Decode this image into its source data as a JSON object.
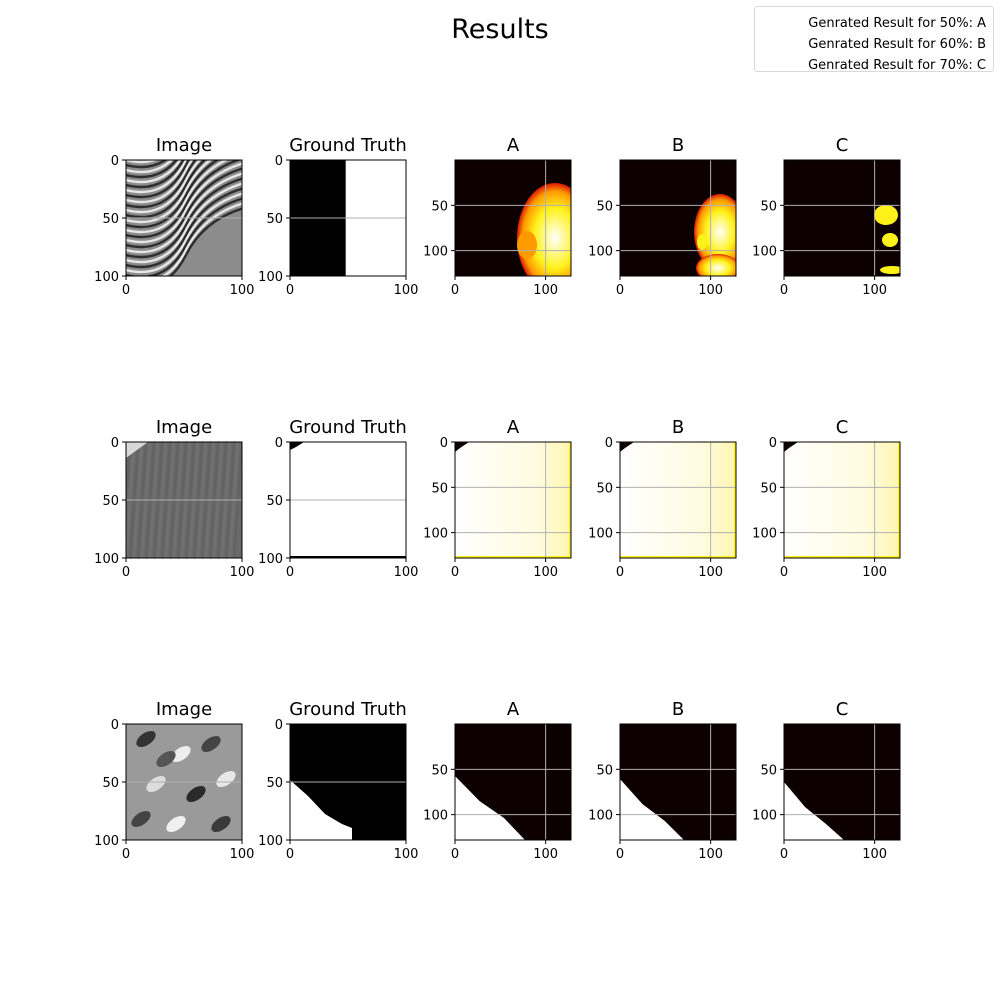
{
  "figure_title": "Results",
  "legend": [
    "Genrated Result for 50%: A",
    "Genrated Result for 60%: B",
    "Genrated Result for 70%: C"
  ],
  "colors": {
    "gray_axis_bg": "#7a7a7a",
    "heat_dark": "#0d0000",
    "heat_red": "#d81800",
    "heat_orange": "#ff9a00",
    "heat_yellow": "#fff21a",
    "heat_white": "#ffffff",
    "gridline": "#b0b0b0"
  },
  "chart_data": [
    {
      "type": "heatmap",
      "row": 1,
      "col": 1,
      "title": "Image",
      "xticks": [
        0,
        100
      ],
      "yticks": [
        0,
        50,
        100
      ],
      "xlim": [
        0,
        100
      ],
      "ylim": [
        100,
        0
      ],
      "content": "grayscale-seismic-diagonal"
    },
    {
      "type": "heatmap",
      "row": 1,
      "col": 2,
      "title": "Ground Truth",
      "xticks": [
        0,
        100
      ],
      "yticks": [
        0,
        50,
        100
      ],
      "xlim": [
        0,
        100
      ],
      "ylim": [
        100,
        0
      ],
      "mask": {
        "white_region": "right half",
        "boundary_x": 48
      }
    },
    {
      "type": "heatmap",
      "row": 1,
      "col": 3,
      "title": "A",
      "xticks": [
        0,
        100
      ],
      "yticks": [
        50,
        100
      ],
      "xlim": [
        0,
        128
      ],
      "ylim": [
        128,
        0
      ],
      "content": "right-side blob x 65-128, y 40-128"
    },
    {
      "type": "heatmap",
      "row": 1,
      "col": 4,
      "title": "B",
      "xticks": [
        0,
        100
      ],
      "yticks": [
        50,
        100
      ],
      "xlim": [
        0,
        128
      ],
      "ylim": [
        128,
        0
      ],
      "content": "right-side blob x 75-128, y 40-128"
    },
    {
      "type": "heatmap",
      "row": 1,
      "col": 5,
      "title": "C",
      "xticks": [
        0,
        100
      ],
      "yticks": [
        50,
        100
      ],
      "xlim": [
        0,
        128
      ],
      "ylim": [
        128,
        0
      ],
      "content": "small blobs x 85-128, y 45-125"
    },
    {
      "type": "heatmap",
      "row": 2,
      "col": 1,
      "title": "Image",
      "xticks": [
        0,
        100
      ],
      "yticks": [
        0,
        50,
        100
      ],
      "xlim": [
        0,
        100
      ],
      "ylim": [
        100,
        0
      ],
      "content": "grayscale-smooth"
    },
    {
      "type": "heatmap",
      "row": 2,
      "col": 2,
      "title": "Ground Truth",
      "xticks": [
        0,
        100
      ],
      "yticks": [
        0,
        50,
        100
      ],
      "xlim": [
        0,
        100
      ],
      "ylim": [
        100,
        0
      ],
      "mask": {
        "white_region": "nearly all",
        "black_corner": "top-left"
      }
    },
    {
      "type": "heatmap",
      "row": 2,
      "col": 3,
      "title": "A",
      "xticks": [
        0,
        100
      ],
      "yticks": [
        0,
        50,
        100
      ],
      "xlim": [
        0,
        128
      ],
      "ylim": [
        128,
        0
      ],
      "content": "nearly all white"
    },
    {
      "type": "heatmap",
      "row": 2,
      "col": 4,
      "title": "B",
      "xticks": [
        0,
        100
      ],
      "yticks": [
        0,
        50,
        100
      ],
      "xlim": [
        0,
        128
      ],
      "ylim": [
        128,
        0
      ],
      "content": "nearly all white"
    },
    {
      "type": "heatmap",
      "row": 2,
      "col": 5,
      "title": "C",
      "xticks": [
        0,
        100
      ],
      "yticks": [
        0,
        50,
        100
      ],
      "xlim": [
        0,
        128
      ],
      "ylim": [
        128,
        0
      ],
      "content": "nearly all white"
    },
    {
      "type": "heatmap",
      "row": 3,
      "col": 1,
      "title": "Image",
      "xticks": [
        0,
        100
      ],
      "yticks": [
        0,
        50,
        100
      ],
      "xlim": [
        0,
        100
      ],
      "ylim": [
        100,
        0
      ],
      "content": "grayscale-textured"
    },
    {
      "type": "heatmap",
      "row": 3,
      "col": 2,
      "title": "Ground Truth",
      "xticks": [
        0,
        100
      ],
      "yticks": [
        0,
        50,
        100
      ],
      "xlim": [
        0,
        100
      ],
      "ylim": [
        100,
        0
      ],
      "mask": {
        "white_region": "bottom-left triangle"
      }
    },
    {
      "type": "heatmap",
      "row": 3,
      "col": 3,
      "title": "A",
      "xticks": [
        0,
        100
      ],
      "yticks": [
        50,
        100
      ],
      "xlim": [
        0,
        128
      ],
      "ylim": [
        128,
        0
      ],
      "content": "bottom-left triangle"
    },
    {
      "type": "heatmap",
      "row": 3,
      "col": 4,
      "title": "B",
      "xticks": [
        0,
        100
      ],
      "yticks": [
        50,
        100
      ],
      "xlim": [
        0,
        128
      ],
      "ylim": [
        128,
        0
      ],
      "content": "bottom-left triangle"
    },
    {
      "type": "heatmap",
      "row": 3,
      "col": 5,
      "title": "C",
      "xticks": [
        0,
        100
      ],
      "yticks": [
        50,
        100
      ],
      "xlim": [
        0,
        128
      ],
      "ylim": [
        128,
        0
      ],
      "content": "bottom-left triangle"
    }
  ]
}
